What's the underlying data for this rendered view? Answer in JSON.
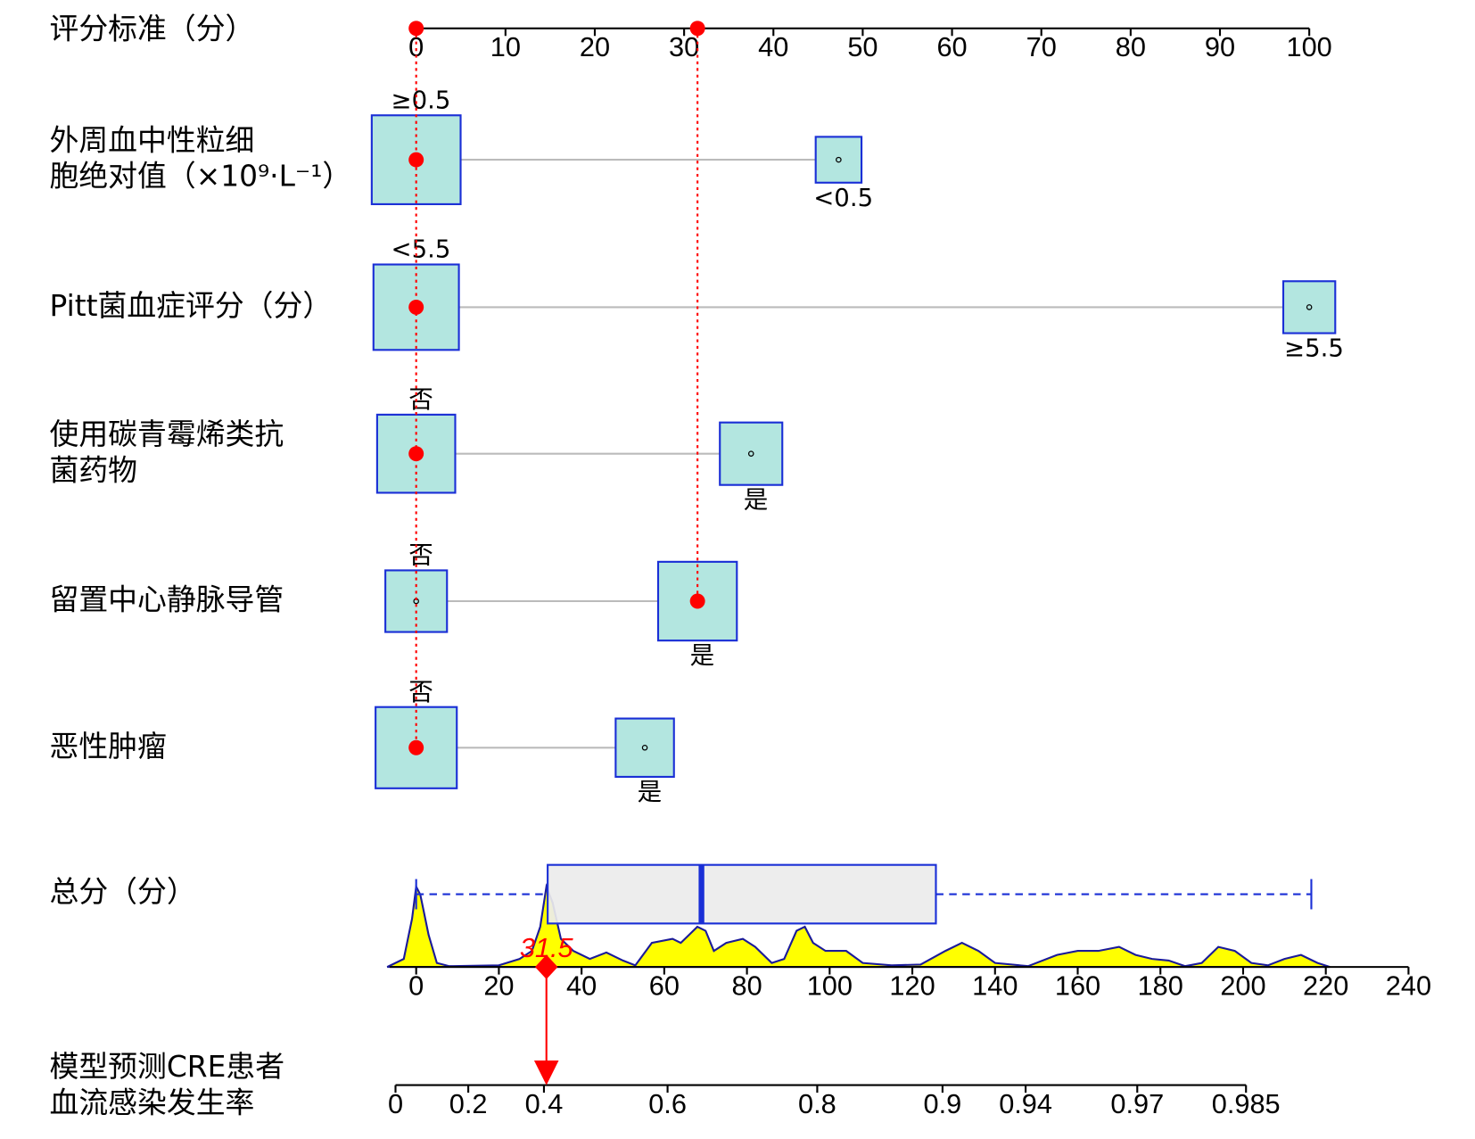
{
  "chart_data": {
    "type": "nomogram",
    "points_axis": {
      "label": "评分标准（分）",
      "xlim": [
        0,
        100
      ],
      "xticks": [
        0,
        10,
        20,
        30,
        40,
        50,
        60,
        70,
        80,
        90,
        100
      ]
    },
    "variables": [
      {
        "name": [
          "外周血中性粒细",
          "胞绝对值（×10⁹·L⁻¹）"
        ],
        "levels": [
          "≥0.5",
          "<0.5"
        ],
        "points": [
          0,
          47.3
        ],
        "proportions": [
          0.79,
          0.21
        ],
        "selected": 0
      },
      {
        "name": [
          "Pitt菌血症评分（分）"
        ],
        "levels": [
          "<5.5",
          "≥5.5"
        ],
        "points": [
          0,
          100
        ],
        "proportions": [
          0.73,
          0.27
        ],
        "selected": 0
      },
      {
        "name": [
          "使用碳青霉烯类抗",
          "菌药物"
        ],
        "levels": [
          "否",
          "是"
        ],
        "points": [
          0,
          37.5
        ],
        "proportions": [
          0.61,
          0.39
        ],
        "selected": 0
      },
      {
        "name": [
          "留置中心静脉导管"
        ],
        "levels": [
          "否",
          "是"
        ],
        "points": [
          0,
          31.5
        ],
        "proportions": [
          0.38,
          0.62
        ],
        "selected": 1
      },
      {
        "name": [
          "恶性肿瘤"
        ],
        "levels": [
          "否",
          "是"
        ],
        "points": [
          0,
          25.6
        ],
        "proportions": [
          0.66,
          0.34
        ],
        "selected": 0
      }
    ],
    "selected_color": "#ff0000",
    "box_fill": "#b3e6e0",
    "box_stroke": "#1a2fd6",
    "total_axis": {
      "label": "总分（分）",
      "xlim": [
        0,
        240
      ],
      "xticks": [
        0,
        20,
        40,
        60,
        80,
        100,
        120,
        140,
        160,
        180,
        200,
        220,
        240
      ],
      "box": {
        "min": 0,
        "q1": 31.8,
        "median": 69,
        "q3": 125.7,
        "max": 216.5
      },
      "density": {
        "x": [
          -7,
          -3,
          -1,
          0,
          1,
          3,
          5,
          8,
          20,
          25,
          28,
          30,
          31.5,
          33,
          35,
          38,
          42,
          46,
          50,
          53,
          57,
          62,
          64,
          66,
          68,
          70,
          72,
          75,
          79,
          82,
          86,
          89,
          92,
          94,
          96,
          99,
          104,
          108,
          115,
          122,
          128,
          132,
          136,
          140,
          148,
          155,
          160,
          165,
          170,
          174,
          178,
          182,
          186,
          190,
          194,
          198,
          202,
          206,
          210,
          214,
          218,
          221
        ],
        "y": [
          0,
          0.1,
          0.6,
          1.0,
          0.9,
          0.4,
          0.05,
          0.01,
          0.02,
          0.1,
          0.2,
          0.5,
          1.0,
          0.8,
          0.35,
          0.2,
          0.1,
          0.18,
          0.08,
          0.02,
          0.3,
          0.35,
          0.3,
          0.4,
          0.5,
          0.45,
          0.2,
          0.3,
          0.35,
          0.25,
          0.05,
          0.1,
          0.45,
          0.5,
          0.3,
          0.2,
          0.2,
          0.05,
          0.02,
          0.03,
          0.2,
          0.3,
          0.2,
          0.05,
          0.01,
          0.15,
          0.2,
          0.2,
          0.25,
          0.15,
          0.1,
          0.08,
          0.01,
          0.05,
          0.25,
          0.2,
          0.05,
          0.02,
          0.1,
          0.15,
          0.05,
          0
        ]
      },
      "density_color": "#ffff00"
    },
    "total_points": 31.5,
    "probability_axis": {
      "label": [
        "模型预测CRE患者",
        "血流感染发生率"
      ],
      "xticks": [
        0,
        0.2,
        0.4,
        0.6,
        0.8,
        0.9,
        0.94,
        0.97,
        0.985
      ],
      "tick_points": [
        -5,
        12.6,
        30.9,
        60.8,
        97,
        127.3,
        147.4,
        174.4,
        200.7
      ]
    }
  }
}
